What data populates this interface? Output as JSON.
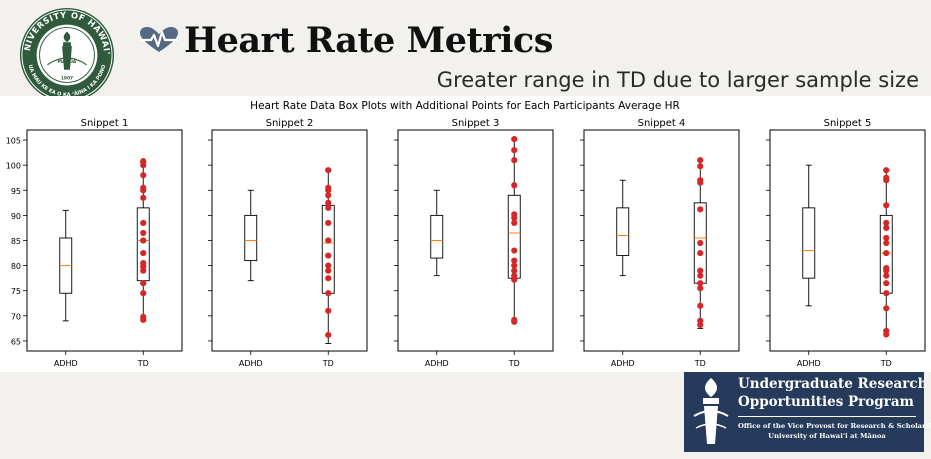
{
  "header": {
    "title": "Heart Rate Metrics",
    "subtitle": "Greater range in TD due to larger sample size"
  },
  "seal": {
    "top_text": "UNIVERSITY OF HAWAI'I",
    "bottom_text": "UA MAU KE EA O KA ʻĀINA I KA PONO",
    "center_text": "MĀNOA",
    "year": "1907"
  },
  "logo": {
    "line1": "Undergraduate Research",
    "line2": "Opportunities Program",
    "sub1": "Office of the Vice Provost for Research & Scholarship",
    "sub2": "University of Hawaiʻi at Mānoa"
  },
  "colors": {
    "accent": "#556a82",
    "point": "#d62728",
    "median": "#ff7f0e",
    "seal_green": "#2f5b3c",
    "logo_bg": "#263a5c"
  },
  "chart_data": {
    "type": "box",
    "title": "Heart Rate Data Box Plots with Additional Points for Each Participants Average HR",
    "ylim": [
      63,
      107
    ],
    "yticks": [
      65,
      70,
      75,
      80,
      85,
      90,
      95,
      100,
      105
    ],
    "shared_y": true,
    "categories": [
      "ADHD",
      "TD"
    ],
    "panels": [
      {
        "title": "Snippet 1",
        "boxes": [
          {
            "category": "ADHD",
            "min": 69,
            "q1": 74.5,
            "median": 80,
            "q3": 85.5,
            "max": 91
          },
          {
            "category": "TD",
            "min": 69,
            "q1": 77,
            "median": 85,
            "q3": 91.5,
            "max": 100.5
          }
        ],
        "points": [
          69.2,
          69.8,
          74.5,
          76.5,
          79,
          79.8,
          80.5,
          82.5,
          85,
          86.5,
          88.5,
          93.5,
          95,
          95.5,
          98,
          100,
          100.8
        ]
      },
      {
        "title": "Snippet 2",
        "boxes": [
          {
            "category": "ADHD",
            "min": 77,
            "q1": 81,
            "median": 85,
            "q3": 90,
            "max": 95
          },
          {
            "category": "TD",
            "min": 64.5,
            "q1": 74.5,
            "median": 84.5,
            "q3": 92,
            "max": 99
          }
        ],
        "points": [
          66.2,
          71,
          74.5,
          77.5,
          79,
          80,
          82,
          85,
          88.5,
          91.5,
          92.5,
          94,
          95,
          95.5,
          99
        ]
      },
      {
        "title": "Snippet 3",
        "boxes": [
          {
            "category": "ADHD",
            "min": 78,
            "q1": 81.5,
            "median": 85,
            "q3": 90,
            "max": 95
          },
          {
            "category": "TD",
            "min": 69,
            "q1": 77.5,
            "median": 86.5,
            "q3": 94,
            "max": 105
          }
        ],
        "points": [
          68.8,
          69.2,
          77.2,
          78,
          79,
          80,
          81,
          83,
          88.5,
          89.5,
          90.2,
          96,
          101,
          103,
          105.2
        ]
      },
      {
        "title": "Snippet 4",
        "boxes": [
          {
            "category": "ADHD",
            "min": 78,
            "q1": 82,
            "median": 86,
            "q3": 91.5,
            "max": 97
          },
          {
            "category": "TD",
            "min": 67.5,
            "q1": 76.5,
            "median": 85.5,
            "q3": 92.5,
            "max": 101
          }
        ],
        "points": [
          68.2,
          69,
          72,
          75.5,
          76.5,
          78,
          79,
          82.5,
          84.5,
          91.2,
          96.5,
          97,
          99.8,
          101
        ]
      },
      {
        "title": "Snippet 5",
        "boxes": [
          {
            "category": "ADHD",
            "min": 72,
            "q1": 77.5,
            "median": 83,
            "q3": 91.5,
            "max": 100
          },
          {
            "category": "TD",
            "min": 67,
            "q1": 74.5,
            "median": 82.5,
            "q3": 90,
            "max": 99
          }
        ],
        "points": [
          66.3,
          67,
          71.5,
          74.5,
          76.5,
          78,
          79,
          79.5,
          82.5,
          84.5,
          85.5,
          87.5,
          88.5,
          92,
          97,
          97.5,
          99
        ]
      }
    ]
  }
}
